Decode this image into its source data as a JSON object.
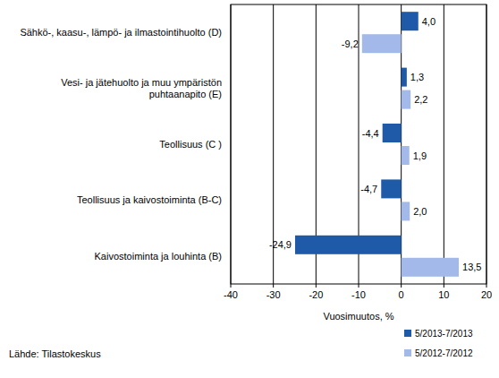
{
  "chart_data": {
    "type": "bar",
    "orientation": "horizontal",
    "categories": [
      "Sähkö-, kaasu-, lämpö- ja ilmastointihuolto (D)",
      "Vesi- ja jätehuolto ja muu ympäristön puhtaanapito (E)",
      "Teollisuus (C )",
      "Teollisuus ja kaivostoiminta (B-C)",
      "Kaivostoiminta ja louhinta (B)"
    ],
    "series": [
      {
        "name": "5/2013-7/2013",
        "color": "#1f5aa8",
        "values": [
          4.0,
          1.3,
          -4.4,
          -4.7,
          -24.9
        ],
        "value_labels": [
          "4,0",
          "1,3",
          "-4,4",
          "-4,7",
          "-24,9"
        ]
      },
      {
        "name": "5/2012-7/2012",
        "color": "#a3b9e9",
        "values": [
          -9.2,
          2.2,
          1.9,
          2.0,
          13.5
        ],
        "value_labels": [
          "-9,2",
          "2,2",
          "1,9",
          "2,0",
          "13,5"
        ]
      }
    ],
    "xlim": [
      -40,
      20
    ],
    "xticks": [
      -40,
      -30,
      -20,
      -10,
      0,
      10,
      20
    ],
    "x_label": "Vuosimuutos, %",
    "source": "Lähde: Tilastokeskus",
    "grid": true,
    "legend": "bottom-right",
    "data_labels": true
  }
}
